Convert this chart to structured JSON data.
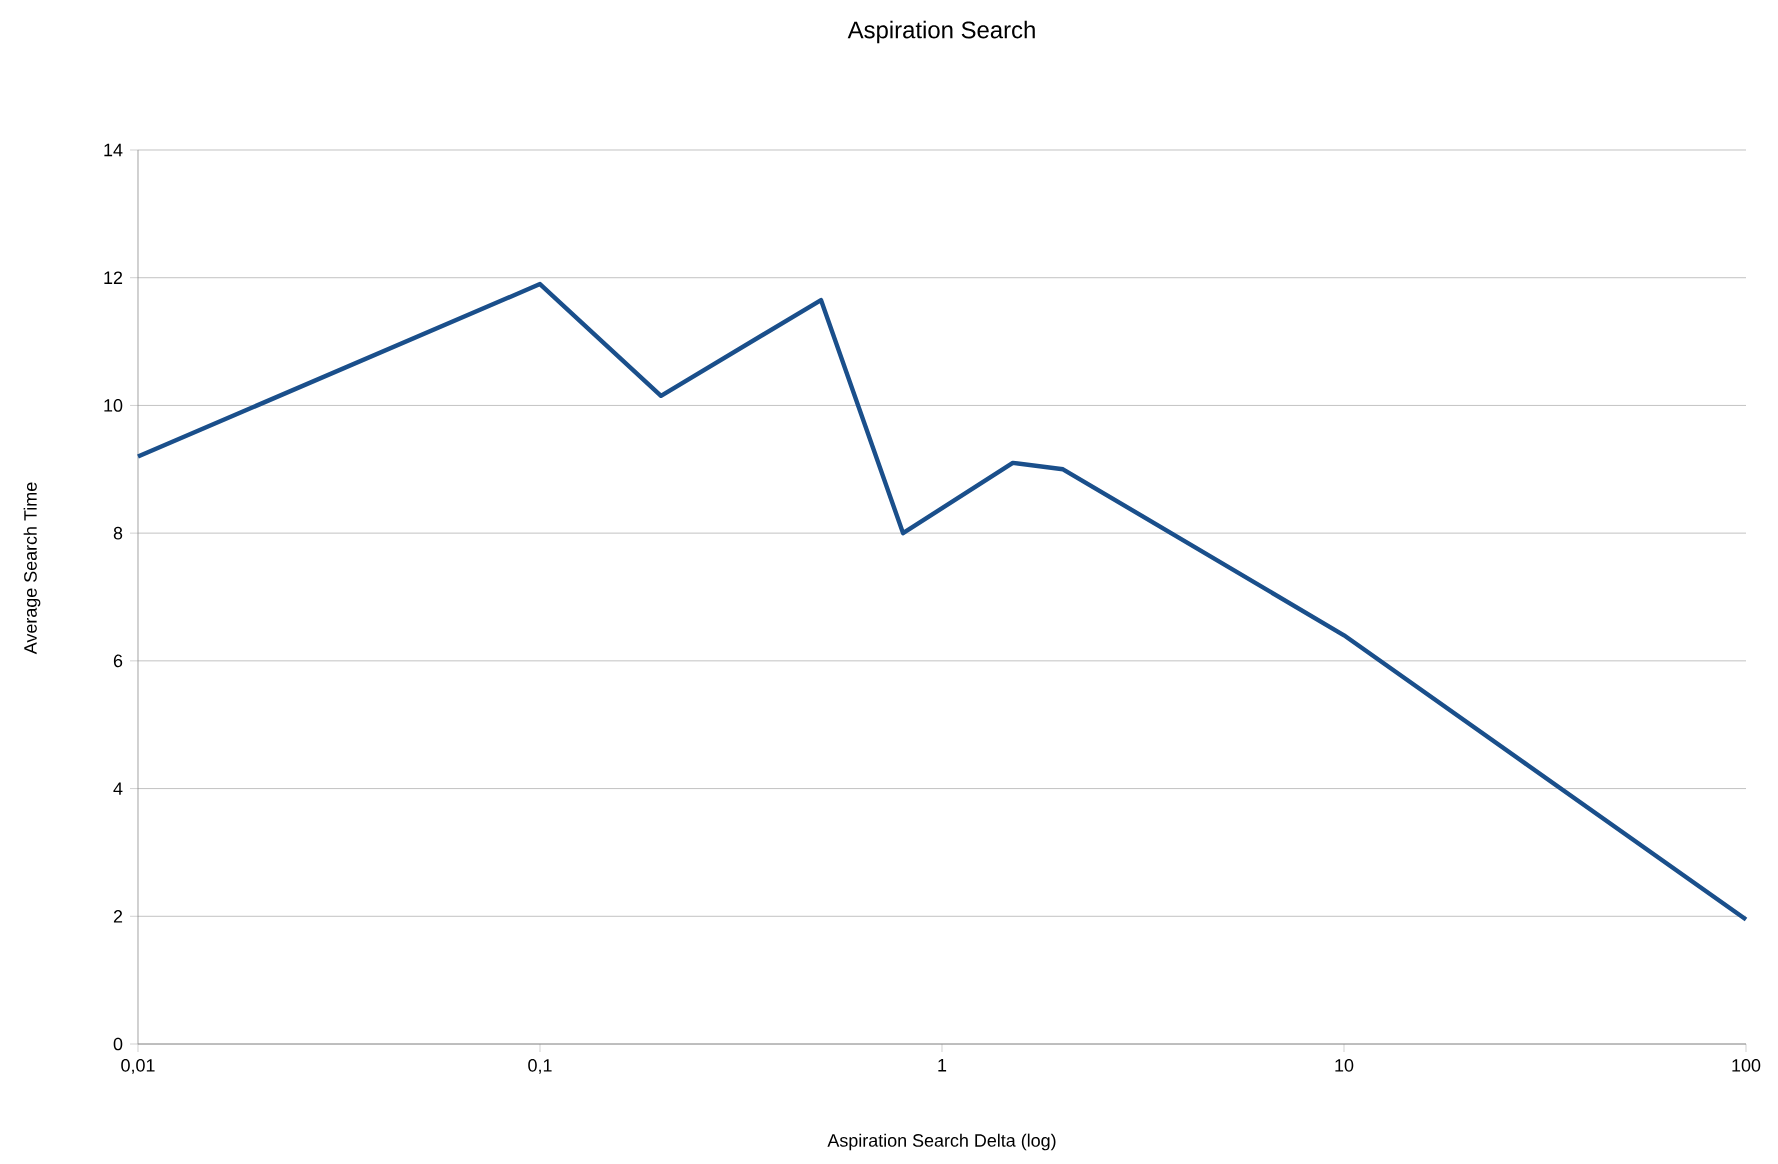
{
  "chart_data": {
    "type": "line",
    "title": "Aspiration Search",
    "xlabel": "Aspiration Search Delta (log)",
    "ylabel": "Average Search Time",
    "x": [
      0.01,
      0.1,
      0.2,
      0.5,
      0.8,
      1.5,
      2,
      10,
      100
    ],
    "series": [
      {
        "color": "#1a4f8b",
        "values": [
          9.2,
          11.9,
          10.15,
          11.65,
          8.0,
          9.1,
          9.0,
          6.4,
          1.95
        ]
      }
    ],
    "log": "x",
    "grid": "y",
    "xlim": [
      0.01,
      100
    ],
    "ylim": [
      0,
      14
    ],
    "xticks": [
      {
        "value": 0.01,
        "label": "0,01"
      },
      {
        "value": 0.1,
        "label": "0,1"
      },
      1,
      10,
      100
    ],
    "yticks": [
      0,
      2,
      4,
      6,
      8,
      10,
      12,
      14
    ]
  }
}
